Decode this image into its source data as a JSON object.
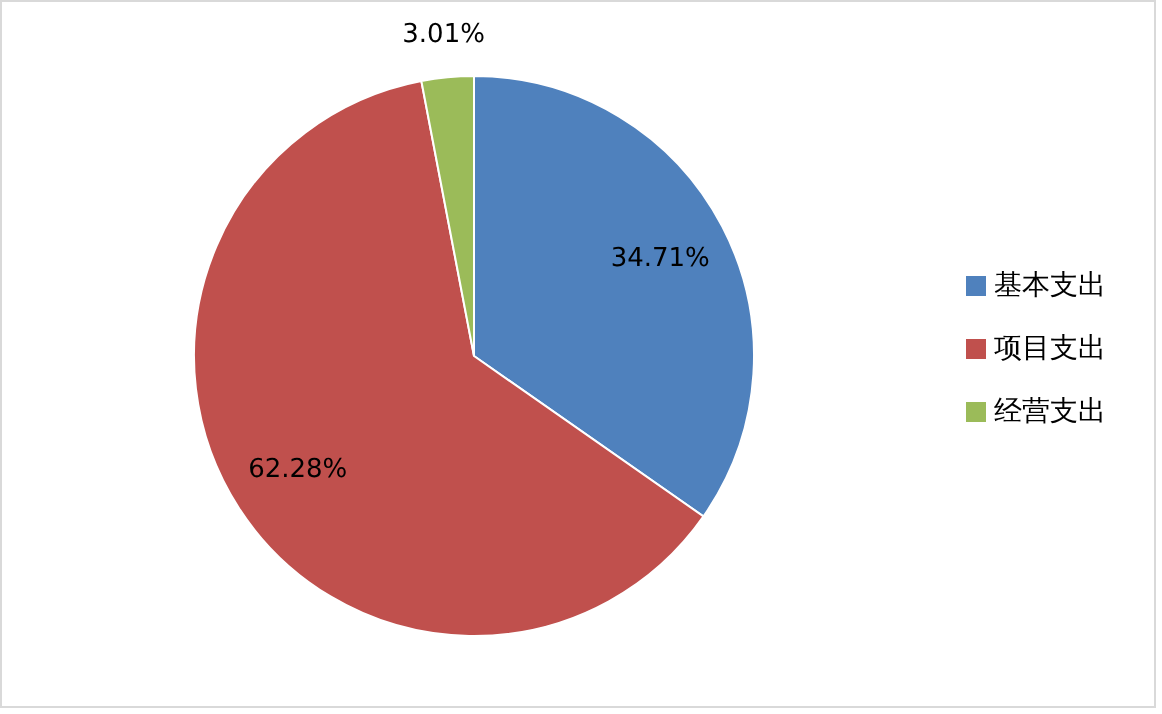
{
  "chart_data": {
    "type": "pie",
    "categories": [
      "基本支出",
      "项目支出",
      "经营支出"
    ],
    "values": [
      34.71,
      62.28,
      3.01
    ],
    "value_labels": [
      "34.71%",
      "62.28%",
      "3.01%"
    ],
    "colors": [
      "#4f81bd",
      "#c0504d",
      "#9bbb59"
    ],
    "legend": "right"
  }
}
